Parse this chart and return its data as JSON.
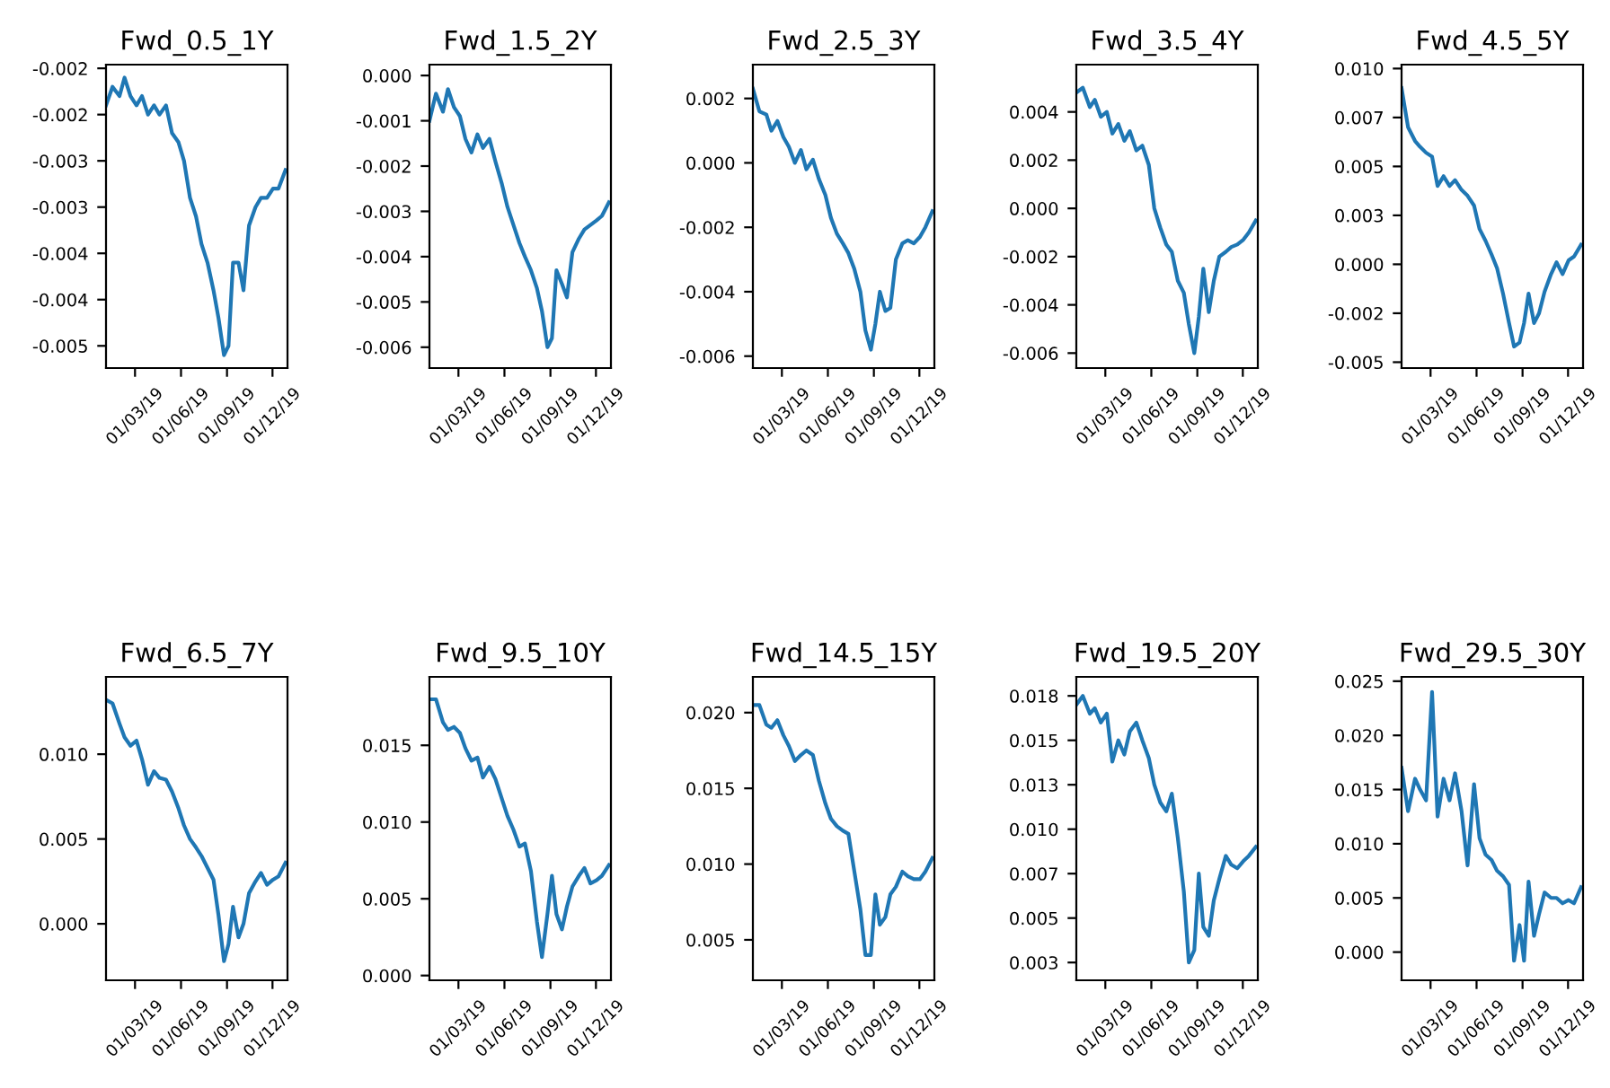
{
  "chart_data": [
    {
      "type": "line",
      "title": "Fwd_0.5_1Y",
      "color": "#1f77b4",
      "x": [
        "2019-01-02",
        "2019-01-15",
        "2019-01-29",
        "2019-02-08",
        "2019-02-20",
        "2019-03-04",
        "2019-03-15",
        "2019-03-27",
        "2019-04-08",
        "2019-04-19",
        "2019-05-02",
        "2019-05-14",
        "2019-05-27",
        "2019-06-07",
        "2019-06-19",
        "2019-07-01",
        "2019-07-12",
        "2019-07-24",
        "2019-08-05",
        "2019-08-15",
        "2019-08-26",
        "2019-09-04",
        "2019-09-13",
        "2019-09-24",
        "2019-10-04",
        "2019-10-15",
        "2019-10-28",
        "2019-11-08",
        "2019-11-20",
        "2019-12-02",
        "2019-12-13",
        "2019-12-27"
      ],
      "values": [
        -0.0019,
        -0.0017,
        -0.0018,
        -0.0016,
        -0.0018,
        -0.0019,
        -0.0018,
        -0.002,
        -0.0019,
        -0.002,
        -0.0019,
        -0.0022,
        -0.0023,
        -0.0025,
        -0.0029,
        -0.0031,
        -0.0034,
        -0.0036,
        -0.0039,
        -0.0042,
        -0.0046,
        -0.0045,
        -0.0036,
        -0.0036,
        -0.0039,
        -0.0032,
        -0.003,
        -0.0029,
        -0.0029,
        -0.0028,
        -0.0028,
        -0.0026
      ],
      "xlim": [
        "2019-01-02",
        "2019-12-31"
      ],
      "xticks": [
        {
          "value": "2019-03-01",
          "label": "01/03/19"
        },
        {
          "value": "2019-06-01",
          "label": "01/06/19"
        },
        {
          "value": "2019-09-01",
          "label": "01/09/19"
        },
        {
          "value": "2019-12-01",
          "label": "01/12/19"
        }
      ],
      "ylim": [
        -0.00474,
        -0.00146
      ],
      "yticks": [
        {
          "value": -0.0015,
          "label": "-0.002"
        },
        {
          "value": -0.002,
          "label": "-0.002"
        },
        {
          "value": -0.0025,
          "label": "-0.003"
        },
        {
          "value": -0.003,
          "label": "-0.003"
        },
        {
          "value": -0.0035,
          "label": "-0.004"
        },
        {
          "value": -0.004,
          "label": "-0.004"
        },
        {
          "value": -0.0045,
          "label": "-0.005"
        }
      ]
    },
    {
      "type": "line",
      "title": "Fwd_1.5_2Y",
      "color": "#1f77b4",
      "x": [
        "2019-01-02",
        "2019-01-15",
        "2019-01-29",
        "2019-02-08",
        "2019-02-20",
        "2019-03-04",
        "2019-03-15",
        "2019-03-27",
        "2019-04-08",
        "2019-04-19",
        "2019-05-02",
        "2019-05-14",
        "2019-05-27",
        "2019-06-07",
        "2019-06-19",
        "2019-07-01",
        "2019-07-12",
        "2019-07-24",
        "2019-08-05",
        "2019-08-15",
        "2019-08-26",
        "2019-09-04",
        "2019-09-13",
        "2019-09-24",
        "2019-10-04",
        "2019-10-15",
        "2019-10-28",
        "2019-11-08",
        "2019-11-20",
        "2019-12-02",
        "2019-12-13",
        "2019-12-27"
      ],
      "values": [
        -0.001,
        -0.0004,
        -0.0008,
        -0.0003,
        -0.0007,
        -0.0009,
        -0.0014,
        -0.0017,
        -0.0013,
        -0.0016,
        -0.0014,
        -0.0019,
        -0.0024,
        -0.0029,
        -0.0033,
        -0.0037,
        -0.004,
        -0.0043,
        -0.0047,
        -0.0052,
        -0.006,
        -0.0058,
        -0.0043,
        -0.0046,
        -0.0049,
        -0.0039,
        -0.0036,
        -0.0034,
        -0.0033,
        -0.0032,
        -0.0031,
        -0.0028
      ],
      "xlim": [
        "2019-01-02",
        "2019-12-31"
      ],
      "xticks": [
        {
          "value": "2019-03-01",
          "label": "01/03/19"
        },
        {
          "value": "2019-06-01",
          "label": "01/06/19"
        },
        {
          "value": "2019-09-01",
          "label": "01/09/19"
        },
        {
          "value": "2019-12-01",
          "label": "01/12/19"
        }
      ],
      "ylim": [
        -0.00646,
        0.00024
      ],
      "yticks": [
        {
          "value": 0.0,
          "label": "0.000"
        },
        {
          "value": -0.001,
          "label": "-0.001"
        },
        {
          "value": -0.002,
          "label": "-0.002"
        },
        {
          "value": -0.003,
          "label": "-0.003"
        },
        {
          "value": -0.004,
          "label": "-0.004"
        },
        {
          "value": -0.005,
          "label": "-0.005"
        },
        {
          "value": -0.006,
          "label": "-0.006"
        }
      ]
    },
    {
      "type": "line",
      "title": "Fwd_2.5_3Y",
      "color": "#1f77b4",
      "x": [
        "2019-01-02",
        "2019-01-15",
        "2019-01-29",
        "2019-02-08",
        "2019-02-20",
        "2019-03-04",
        "2019-03-15",
        "2019-03-27",
        "2019-04-08",
        "2019-04-19",
        "2019-05-02",
        "2019-05-14",
        "2019-05-27",
        "2019-06-07",
        "2019-06-19",
        "2019-07-01",
        "2019-07-12",
        "2019-07-24",
        "2019-08-05",
        "2019-08-15",
        "2019-08-26",
        "2019-09-04",
        "2019-09-13",
        "2019-09-24",
        "2019-10-04",
        "2019-10-15",
        "2019-10-28",
        "2019-11-08",
        "2019-11-20",
        "2019-12-02",
        "2019-12-13",
        "2019-12-27"
      ],
      "values": [
        0.0023,
        0.0016,
        0.0015,
        0.001,
        0.0013,
        0.0008,
        0.0005,
        0.0,
        0.0004,
        -0.0002,
        0.0001,
        -0.0005,
        -0.001,
        -0.0017,
        -0.0022,
        -0.0025,
        -0.0028,
        -0.0033,
        -0.004,
        -0.0052,
        -0.0058,
        -0.005,
        -0.004,
        -0.0046,
        -0.0045,
        -0.003,
        -0.0025,
        -0.0024,
        -0.0025,
        -0.0023,
        -0.002,
        -0.0015
      ],
      "xlim": [
        "2019-01-02",
        "2019-12-31"
      ],
      "xticks": [
        {
          "value": "2019-03-01",
          "label": "01/03/19"
        },
        {
          "value": "2019-06-01",
          "label": "01/06/19"
        },
        {
          "value": "2019-09-01",
          "label": "01/09/19"
        },
        {
          "value": "2019-12-01",
          "label": "01/12/19"
        }
      ],
      "ylim": [
        -0.00637,
        0.00305
      ],
      "yticks": [
        {
          "value": 0.002,
          "label": "0.002"
        },
        {
          "value": 0.0,
          "label": "0.000"
        },
        {
          "value": -0.002,
          "label": "-0.002"
        },
        {
          "value": -0.004,
          "label": "-0.004"
        },
        {
          "value": -0.006,
          "label": "-0.006"
        }
      ]
    },
    {
      "type": "line",
      "title": "Fwd_3.5_4Y",
      "color": "#1f77b4",
      "x": [
        "2019-01-02",
        "2019-01-15",
        "2019-01-29",
        "2019-02-08",
        "2019-02-20",
        "2019-03-04",
        "2019-03-15",
        "2019-03-27",
        "2019-04-08",
        "2019-04-19",
        "2019-05-02",
        "2019-05-14",
        "2019-05-27",
        "2019-06-07",
        "2019-06-19",
        "2019-07-01",
        "2019-07-12",
        "2019-07-24",
        "2019-08-05",
        "2019-08-15",
        "2019-08-26",
        "2019-09-04",
        "2019-09-13",
        "2019-09-24",
        "2019-10-04",
        "2019-10-15",
        "2019-10-28",
        "2019-11-08",
        "2019-11-20",
        "2019-12-02",
        "2019-12-13",
        "2019-12-27"
      ],
      "values": [
        0.0048,
        0.005,
        0.0042,
        0.0045,
        0.0038,
        0.004,
        0.0031,
        0.0035,
        0.0028,
        0.0032,
        0.0024,
        0.0026,
        0.0018,
        0.0,
        -0.0008,
        -0.0015,
        -0.0018,
        -0.003,
        -0.0035,
        -0.0048,
        -0.006,
        -0.0045,
        -0.0025,
        -0.0043,
        -0.003,
        -0.002,
        -0.0018,
        -0.0016,
        -0.0015,
        -0.0013,
        -0.001,
        -0.0005
      ],
      "xlim": [
        "2019-01-02",
        "2019-12-31"
      ],
      "xticks": [
        {
          "value": "2019-03-01",
          "label": "01/03/19"
        },
        {
          "value": "2019-06-01",
          "label": "01/06/19"
        },
        {
          "value": "2019-09-01",
          "label": "01/09/19"
        },
        {
          "value": "2019-12-01",
          "label": "01/12/19"
        }
      ],
      "ylim": [
        -0.00662,
        0.00596
      ],
      "yticks": [
        {
          "value": 0.004,
          "label": "0.004"
        },
        {
          "value": 0.002,
          "label": "0.002"
        },
        {
          "value": 0.0,
          "label": "0.000"
        },
        {
          "value": -0.002,
          "label": "-0.002"
        },
        {
          "value": -0.004,
          "label": "-0.004"
        },
        {
          "value": -0.006,
          "label": "-0.006"
        }
      ]
    },
    {
      "type": "line",
      "title": "Fwd_4.5_5Y",
      "color": "#1f77b4",
      "x": [
        "2019-01-02",
        "2019-01-15",
        "2019-01-29",
        "2019-02-08",
        "2019-02-20",
        "2019-03-04",
        "2019-03-15",
        "2019-03-27",
        "2019-04-08",
        "2019-04-19",
        "2019-05-02",
        "2019-05-14",
        "2019-05-27",
        "2019-06-07",
        "2019-06-19",
        "2019-07-01",
        "2019-07-12",
        "2019-07-24",
        "2019-08-05",
        "2019-08-15",
        "2019-08-26",
        "2019-09-04",
        "2019-09-13",
        "2019-09-24",
        "2019-10-04",
        "2019-10-15",
        "2019-10-28",
        "2019-11-08",
        "2019-11-20",
        "2019-12-02",
        "2019-12-13",
        "2019-12-27"
      ],
      "values": [
        0.009,
        0.007,
        0.0063,
        0.006,
        0.0057,
        0.0055,
        0.004,
        0.0045,
        0.004,
        0.0043,
        0.0038,
        0.0035,
        0.003,
        0.0018,
        0.0012,
        0.0005,
        -0.0002,
        -0.0015,
        -0.003,
        -0.0042,
        -0.004,
        -0.003,
        -0.0015,
        -0.003,
        -0.0025,
        -0.0014,
        -0.0005,
        0.0001,
        -0.0005,
        0.0002,
        0.0004,
        0.001
      ],
      "xlim": [
        "2019-01-02",
        "2019-12-31"
      ],
      "xticks": [
        {
          "value": "2019-03-01",
          "label": "01/03/19"
        },
        {
          "value": "2019-06-01",
          "label": "01/06/19"
        },
        {
          "value": "2019-09-01",
          "label": "01/09/19"
        },
        {
          "value": "2019-12-01",
          "label": "01/12/19"
        }
      ],
      "ylim": [
        -0.0053,
        0.0102
      ],
      "yticks": [
        {
          "value": 0.01,
          "label": "0.010"
        },
        {
          "value": 0.0075,
          "label": "0.007"
        },
        {
          "value": 0.005,
          "label": "0.005"
        },
        {
          "value": 0.0025,
          "label": "0.003"
        },
        {
          "value": 0.0,
          "label": "0.000"
        },
        {
          "value": -0.0025,
          "label": "-0.002"
        },
        {
          "value": -0.005,
          "label": "-0.005"
        }
      ]
    },
    {
      "type": "line",
      "title": "Fwd_6.5_7Y",
      "color": "#1f77b4",
      "x": [
        "2019-01-02",
        "2019-01-15",
        "2019-01-29",
        "2019-02-08",
        "2019-02-20",
        "2019-03-04",
        "2019-03-15",
        "2019-03-27",
        "2019-04-08",
        "2019-04-19",
        "2019-05-02",
        "2019-05-14",
        "2019-05-27",
        "2019-06-07",
        "2019-06-19",
        "2019-07-01",
        "2019-07-12",
        "2019-07-24",
        "2019-08-05",
        "2019-08-15",
        "2019-08-26",
        "2019-09-04",
        "2019-09-13",
        "2019-09-24",
        "2019-10-04",
        "2019-10-15",
        "2019-10-28",
        "2019-11-08",
        "2019-11-20",
        "2019-12-02",
        "2019-12-13",
        "2019-12-27"
      ],
      "values": [
        0.0132,
        0.013,
        0.0118,
        0.011,
        0.0105,
        0.0108,
        0.0097,
        0.0082,
        0.009,
        0.0086,
        0.0085,
        0.0078,
        0.0068,
        0.0058,
        0.005,
        0.0045,
        0.004,
        0.0033,
        0.0026,
        0.0005,
        -0.0022,
        -0.0012,
        0.001,
        -0.0008,
        0.0,
        0.0018,
        0.0025,
        0.003,
        0.0023,
        0.0026,
        0.0028,
        0.0036
      ],
      "xlim": [
        "2019-01-02",
        "2019-12-31"
      ],
      "xticks": [
        {
          "value": "2019-03-01",
          "label": "01/03/19"
        },
        {
          "value": "2019-06-01",
          "label": "01/06/19"
        },
        {
          "value": "2019-09-01",
          "label": "01/09/19"
        },
        {
          "value": "2019-12-01",
          "label": "01/12/19"
        }
      ],
      "ylim": [
        -0.00333,
        0.01456
      ],
      "yticks": [
        {
          "value": 0.01,
          "label": "0.010"
        },
        {
          "value": 0.005,
          "label": "0.005"
        },
        {
          "value": 0.0,
          "label": "0.000"
        }
      ]
    },
    {
      "type": "line",
      "title": "Fwd_9.5_10Y",
      "color": "#1f77b4",
      "x": [
        "2019-01-02",
        "2019-01-15",
        "2019-01-29",
        "2019-02-08",
        "2019-02-20",
        "2019-03-04",
        "2019-03-15",
        "2019-03-27",
        "2019-04-08",
        "2019-04-19",
        "2019-05-02",
        "2019-05-14",
        "2019-05-27",
        "2019-06-07",
        "2019-06-19",
        "2019-07-01",
        "2019-07-12",
        "2019-07-24",
        "2019-08-05",
        "2019-08-15",
        "2019-08-26",
        "2019-09-04",
        "2019-09-13",
        "2019-09-24",
        "2019-10-04",
        "2019-10-15",
        "2019-10-28",
        "2019-11-08",
        "2019-11-20",
        "2019-12-02",
        "2019-12-13",
        "2019-12-27"
      ],
      "values": [
        0.018,
        0.018,
        0.0165,
        0.016,
        0.0162,
        0.0158,
        0.0148,
        0.014,
        0.0142,
        0.0129,
        0.0136,
        0.0128,
        0.0115,
        0.0104,
        0.0095,
        0.0084,
        0.0086,
        0.0068,
        0.0035,
        0.0012,
        0.004,
        0.0065,
        0.004,
        0.003,
        0.0045,
        0.0058,
        0.0065,
        0.007,
        0.006,
        0.0062,
        0.0065,
        0.0072
      ],
      "xlim": [
        "2019-01-02",
        "2019-12-31"
      ],
      "xticks": [
        {
          "value": "2019-03-01",
          "label": "01/03/19"
        },
        {
          "value": "2019-06-01",
          "label": "01/06/19"
        },
        {
          "value": "2019-09-01",
          "label": "01/09/19"
        },
        {
          "value": "2019-12-01",
          "label": "01/12/19"
        }
      ],
      "ylim": [
        -0.00031,
        0.01946
      ],
      "yticks": [
        {
          "value": 0.015,
          "label": "0.015"
        },
        {
          "value": 0.01,
          "label": "0.010"
        },
        {
          "value": 0.005,
          "label": "0.005"
        },
        {
          "value": 0.0,
          "label": "0.000"
        }
      ]
    },
    {
      "type": "line",
      "title": "Fwd_14.5_15Y",
      "color": "#1f77b4",
      "x": [
        "2019-01-02",
        "2019-01-15",
        "2019-01-29",
        "2019-02-08",
        "2019-02-20",
        "2019-03-04",
        "2019-03-15",
        "2019-03-27",
        "2019-04-08",
        "2019-04-19",
        "2019-05-02",
        "2019-05-14",
        "2019-05-27",
        "2019-06-07",
        "2019-06-19",
        "2019-07-01",
        "2019-07-12",
        "2019-07-24",
        "2019-08-05",
        "2019-08-15",
        "2019-08-26",
        "2019-09-04",
        "2019-09-13",
        "2019-09-24",
        "2019-10-04",
        "2019-10-15",
        "2019-10-28",
        "2019-11-08",
        "2019-11-20",
        "2019-12-02",
        "2019-12-13",
        "2019-12-27"
      ],
      "values": [
        0.0205,
        0.0205,
        0.0192,
        0.019,
        0.0195,
        0.0185,
        0.0178,
        0.0168,
        0.0172,
        0.0175,
        0.0172,
        0.0155,
        0.014,
        0.013,
        0.0125,
        0.0122,
        0.012,
        0.0095,
        0.007,
        0.004,
        0.004,
        0.008,
        0.006,
        0.0065,
        0.008,
        0.0085,
        0.0095,
        0.0092,
        0.009,
        0.009,
        0.0095,
        0.0104
      ],
      "xlim": [
        "2019-01-02",
        "2019-12-31"
      ],
      "xticks": [
        {
          "value": "2019-03-01",
          "label": "01/03/19"
        },
        {
          "value": "2019-06-01",
          "label": "01/06/19"
        },
        {
          "value": "2019-09-01",
          "label": "01/09/19"
        },
        {
          "value": "2019-12-01",
          "label": "01/12/19"
        }
      ],
      "ylim": [
        0.00233,
        0.02236
      ],
      "yticks": [
        {
          "value": 0.02,
          "label": "0.020"
        },
        {
          "value": 0.015,
          "label": "0.015"
        },
        {
          "value": 0.01,
          "label": "0.010"
        },
        {
          "value": 0.005,
          "label": "0.005"
        }
      ]
    },
    {
      "type": "line",
      "title": "Fwd_19.5_20Y",
      "color": "#1f77b4",
      "x": [
        "2019-01-02",
        "2019-01-15",
        "2019-01-29",
        "2019-02-08",
        "2019-02-20",
        "2019-03-04",
        "2019-03-15",
        "2019-03-27",
        "2019-04-08",
        "2019-04-19",
        "2019-05-02",
        "2019-05-14",
        "2019-05-27",
        "2019-06-07",
        "2019-06-19",
        "2019-07-01",
        "2019-07-12",
        "2019-07-24",
        "2019-08-05",
        "2019-08-15",
        "2019-08-26",
        "2019-09-04",
        "2019-09-13",
        "2019-09-24",
        "2019-10-04",
        "2019-10-15",
        "2019-10-28",
        "2019-11-08",
        "2019-11-20",
        "2019-12-02",
        "2019-12-13",
        "2019-12-27"
      ],
      "values": [
        0.017,
        0.0175,
        0.0165,
        0.0168,
        0.016,
        0.0165,
        0.0138,
        0.015,
        0.0142,
        0.0155,
        0.016,
        0.015,
        0.014,
        0.0125,
        0.0115,
        0.011,
        0.012,
        0.0095,
        0.0065,
        0.0025,
        0.0032,
        0.0075,
        0.0045,
        0.004,
        0.006,
        0.0072,
        0.0085,
        0.008,
        0.0078,
        0.0082,
        0.0085,
        0.009
      ],
      "xlim": [
        "2019-01-02",
        "2019-12-31"
      ],
      "xticks": [
        {
          "value": "2019-03-01",
          "label": "01/03/19"
        },
        {
          "value": "2019-06-01",
          "label": "01/06/19"
        },
        {
          "value": "2019-09-01",
          "label": "01/09/19"
        },
        {
          "value": "2019-12-01",
          "label": "01/12/19"
        }
      ],
      "ylim": [
        0.0015,
        0.01857
      ],
      "yticks": [
        {
          "value": 0.0175,
          "label": "0.018"
        },
        {
          "value": 0.015,
          "label": "0.015"
        },
        {
          "value": 0.0125,
          "label": "0.013"
        },
        {
          "value": 0.01,
          "label": "0.010"
        },
        {
          "value": 0.0075,
          "label": "0.007"
        },
        {
          "value": 0.005,
          "label": "0.005"
        },
        {
          "value": 0.0025,
          "label": "0.003"
        }
      ]
    },
    {
      "type": "line",
      "title": "Fwd_29.5_30Y",
      "color": "#1f77b4",
      "x": [
        "2019-01-02",
        "2019-01-15",
        "2019-01-29",
        "2019-02-08",
        "2019-02-20",
        "2019-03-04",
        "2019-03-15",
        "2019-03-27",
        "2019-04-08",
        "2019-04-19",
        "2019-05-02",
        "2019-05-14",
        "2019-05-27",
        "2019-06-07",
        "2019-06-19",
        "2019-07-01",
        "2019-07-12",
        "2019-07-24",
        "2019-08-05",
        "2019-08-15",
        "2019-08-26",
        "2019-09-04",
        "2019-09-13",
        "2019-09-24",
        "2019-10-04",
        "2019-10-15",
        "2019-10-28",
        "2019-11-08",
        "2019-11-20",
        "2019-12-02",
        "2019-12-13",
        "2019-12-27"
      ],
      "values": [
        0.017,
        0.013,
        0.016,
        0.015,
        0.014,
        0.024,
        0.0125,
        0.016,
        0.014,
        0.0165,
        0.013,
        0.008,
        0.0155,
        0.0105,
        0.009,
        0.0085,
        0.0075,
        0.007,
        0.0062,
        -0.0008,
        0.0025,
        -0.0008,
        0.0065,
        0.0015,
        0.0035,
        0.0055,
        0.005,
        0.005,
        0.0045,
        0.0048,
        0.0045,
        0.006
      ],
      "xlim": [
        "2019-01-02",
        "2019-12-31"
      ],
      "xticks": [
        {
          "value": "2019-03-01",
          "label": "01/03/19"
        },
        {
          "value": "2019-06-01",
          "label": "01/06/19"
        },
        {
          "value": "2019-09-01",
          "label": "01/09/19"
        },
        {
          "value": "2019-12-01",
          "label": "01/12/19"
        }
      ],
      "ylim": [
        -0.0026,
        0.0254
      ],
      "yticks": [
        {
          "value": 0.025,
          "label": "0.025"
        },
        {
          "value": 0.02,
          "label": "0.020"
        },
        {
          "value": 0.015,
          "label": "0.015"
        },
        {
          "value": 0.01,
          "label": "0.010"
        },
        {
          "value": 0.005,
          "label": "0.005"
        },
        {
          "value": 0.0,
          "label": "0.000"
        }
      ]
    }
  ]
}
